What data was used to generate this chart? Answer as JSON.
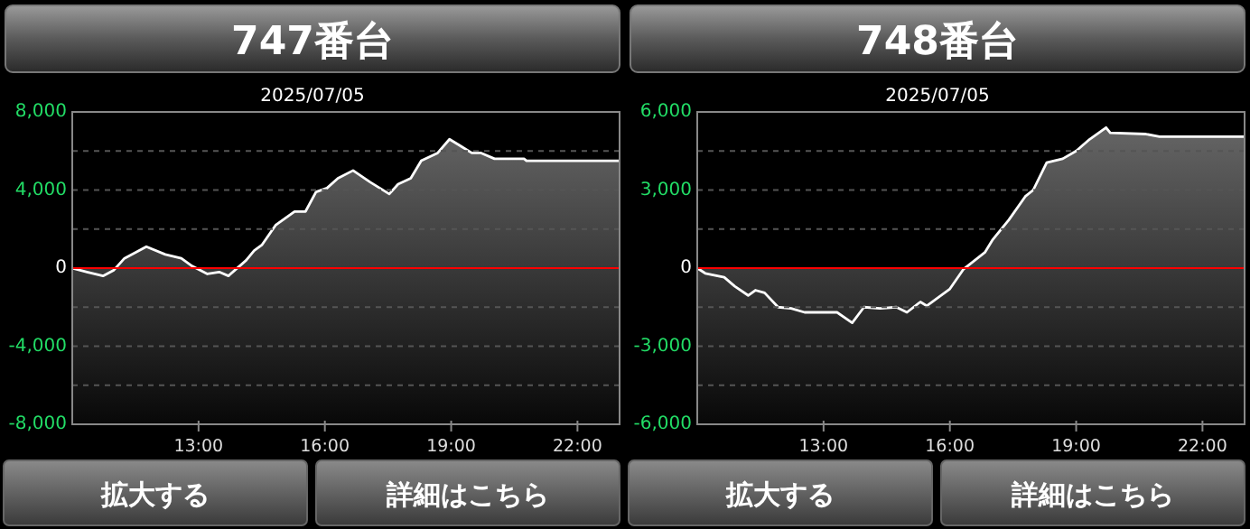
{
  "chart_data": [
    {
      "type": "area",
      "title": "747番台",
      "subtitle": "2025/07/05",
      "annotations": [
        "拡大する",
        "詳細はこちら"
      ],
      "xlim": [
        10,
        23
      ],
      "xticks": [
        {
          "value": 13,
          "label": "13:00"
        },
        {
          "value": 16,
          "label": "16:00"
        },
        {
          "value": 19,
          "label": "19:00"
        },
        {
          "value": 22,
          "label": "22:00"
        }
      ],
      "ylim": [
        -8000,
        8000
      ],
      "yticks": [
        {
          "value": 8000,
          "label": "8,000"
        },
        {
          "value": 6000,
          "label": null
        },
        {
          "value": 4000,
          "label": "4,000"
        },
        {
          "value": 2000,
          "label": null
        },
        0,
        {
          "value": -2000,
          "label": null
        },
        {
          "value": -4000,
          "label": "-4,000"
        },
        {
          "value": -6000,
          "label": null
        },
        {
          "value": -8000,
          "label": "-8,000"
        }
      ],
      "grid": "y",
      "ref_lines": [
        {
          "axis": "y",
          "value": 0,
          "color": "#ff0000"
        }
      ],
      "series": [
        {
          "color": "#ffffff",
          "x": [
            10.0,
            10.35,
            10.73,
            10.99,
            11.24,
            11.76,
            12.21,
            12.59,
            12.85,
            13.21,
            13.49,
            13.71,
            14.13,
            14.32,
            14.51,
            14.83,
            15.28,
            15.54,
            15.79,
            16.05,
            16.31,
            16.67,
            17.08,
            17.53,
            17.74,
            18.04,
            18.29,
            18.68,
            18.96,
            19.19,
            19.49,
            19.71,
            20.03,
            20.73,
            20.79,
            23.0
          ],
          "values": [
            0,
            -200,
            -400,
            -100,
            500,
            1100,
            700,
            500,
            100,
            -300,
            -200,
            -400,
            400,
            900,
            1200,
            2200,
            2900,
            2900,
            3900,
            4100,
            4600,
            5000,
            4400,
            3800,
            4300,
            4600,
            5500,
            5900,
            6600,
            6300,
            5900,
            5900,
            5600,
            5600,
            5500,
            5500
          ]
        }
      ]
    },
    {
      "type": "area",
      "title": "748番台",
      "subtitle": "2025/07/05",
      "annotations": [
        "拡大する",
        "詳細はこちら"
      ],
      "xlim": [
        10,
        23
      ],
      "xticks": [
        {
          "value": 13,
          "label": "13:00"
        },
        {
          "value": 16,
          "label": "16:00"
        },
        {
          "value": 19,
          "label": "19:00"
        },
        {
          "value": 22,
          "label": "22:00"
        }
      ],
      "ylim": [
        -6000,
        6000
      ],
      "yticks": [
        {
          "value": 6000,
          "label": "6,000"
        },
        {
          "value": 4500,
          "label": null
        },
        {
          "value": 3000,
          "label": "3,000"
        },
        {
          "value": 1500,
          "label": null
        },
        0,
        {
          "value": -1500,
          "label": null
        },
        {
          "value": -3000,
          "label": "-3,000"
        },
        {
          "value": -4500,
          "label": null
        },
        {
          "value": -6000,
          "label": "-6,000"
        }
      ],
      "grid": "y",
      "ref_lines": [
        {
          "axis": "y",
          "value": 0,
          "color": "#ff0000"
        }
      ],
      "series": [
        {
          "color": "#ffffff",
          "x": [
            10.0,
            10.19,
            10.64,
            10.89,
            11.21,
            11.38,
            11.6,
            11.92,
            12.23,
            12.55,
            13.32,
            13.68,
            13.96,
            14.34,
            14.73,
            14.98,
            15.3,
            15.45,
            16.0,
            16.32,
            16.83,
            17.02,
            17.4,
            17.79,
            17.98,
            18.3,
            18.68,
            19.0,
            19.32,
            19.71,
            19.81,
            20.66,
            20.98,
            23.0
          ],
          "values": [
            0,
            -200,
            -350,
            -700,
            -1050,
            -850,
            -950,
            -1500,
            -1550,
            -1700,
            -1700,
            -2100,
            -1500,
            -1550,
            -1500,
            -1700,
            -1300,
            -1450,
            -800,
            -50,
            600,
            1100,
            1850,
            2750,
            3000,
            4050,
            4200,
            4500,
            4950,
            5400,
            5200,
            5150,
            5050,
            5050
          ]
        }
      ]
    }
  ]
}
